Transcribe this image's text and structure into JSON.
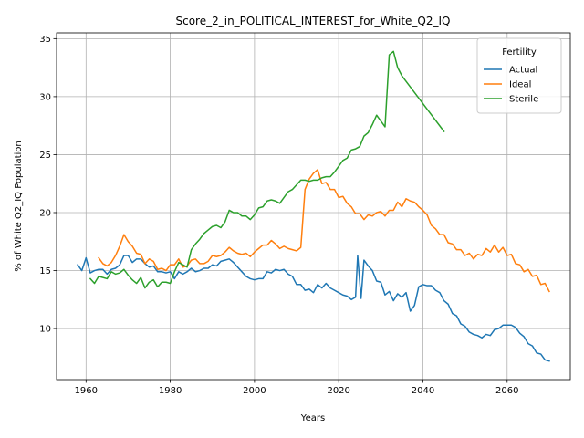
{
  "chart_data": {
    "type": "line",
    "title": "Score_2_in_POLITICAL_INTEREST_for_White_Q2_IQ",
    "xlabel": "Years",
    "ylabel": "% of White Q2_IQ Population",
    "xlim": [
      1953,
      2075
    ],
    "ylim": [
      5.6,
      35.5
    ],
    "xticks": [
      1960,
      1980,
      2000,
      2020,
      2040,
      2060
    ],
    "yticks": [
      10,
      15,
      20,
      25,
      30,
      35
    ],
    "grid": true,
    "legend": {
      "title": "Fertility",
      "position": "top-right"
    },
    "series": [
      {
        "name": "Actual",
        "color": "#1f77b4",
        "points": [
          [
            1958,
            15.5
          ],
          [
            1959,
            15.0
          ],
          [
            1960,
            16.1
          ],
          [
            1961,
            14.8
          ],
          [
            1962,
            15.0
          ],
          [
            1963,
            15.1
          ],
          [
            1964,
            15.1
          ],
          [
            1965,
            14.7
          ],
          [
            1966,
            15.1
          ],
          [
            1967,
            15.2
          ],
          [
            1968,
            15.5
          ],
          [
            1969,
            16.3
          ],
          [
            1970,
            16.3
          ],
          [
            1971,
            15.7
          ],
          [
            1972,
            16.0
          ],
          [
            1973,
            16.0
          ],
          [
            1974,
            15.6
          ],
          [
            1975,
            15.3
          ],
          [
            1976,
            15.4
          ],
          [
            1977,
            14.9
          ],
          [
            1978,
            14.9
          ],
          [
            1979,
            14.8
          ],
          [
            1980,
            14.9
          ],
          [
            1981,
            14.3
          ],
          [
            1982,
            14.9
          ],
          [
            1983,
            14.7
          ],
          [
            1984,
            14.9
          ],
          [
            1985,
            15.2
          ],
          [
            1986,
            14.9
          ],
          [
            1987,
            15.0
          ],
          [
            1988,
            15.2
          ],
          [
            1989,
            15.2
          ],
          [
            1990,
            15.5
          ],
          [
            1991,
            15.4
          ],
          [
            1992,
            15.8
          ],
          [
            1993,
            15.9
          ],
          [
            1994,
            16.0
          ],
          [
            1995,
            15.7
          ],
          [
            1996,
            15.3
          ],
          [
            1997,
            14.9
          ],
          [
            1998,
            14.5
          ],
          [
            1999,
            14.3
          ],
          [
            2000,
            14.2
          ],
          [
            2001,
            14.3
          ],
          [
            2002,
            14.3
          ],
          [
            2003,
            14.9
          ],
          [
            2004,
            14.8
          ],
          [
            2005,
            15.1
          ],
          [
            2006,
            15.0
          ],
          [
            2007,
            15.1
          ],
          [
            2008,
            14.7
          ],
          [
            2009,
            14.5
          ],
          [
            2010,
            13.8
          ],
          [
            2011,
            13.8
          ],
          [
            2012,
            13.3
          ],
          [
            2013,
            13.4
          ],
          [
            2014,
            13.1
          ],
          [
            2015,
            13.8
          ],
          [
            2016,
            13.5
          ],
          [
            2017,
            13.9
          ],
          [
            2018,
            13.5
          ],
          [
            2019,
            13.3
          ],
          [
            2020,
            13.1
          ],
          [
            2021,
            12.9
          ],
          [
            2022,
            12.8
          ],
          [
            2023,
            12.5
          ],
          [
            2024,
            12.7
          ],
          [
            2024.5,
            16.3
          ],
          [
            2025.3,
            12.6
          ],
          [
            2026,
            15.9
          ],
          [
            2027,
            15.4
          ],
          [
            2028,
            15.0
          ],
          [
            2029,
            14.1
          ],
          [
            2030,
            14.0
          ],
          [
            2031,
            12.9
          ],
          [
            2032,
            13.2
          ],
          [
            2033,
            12.4
          ],
          [
            2034,
            13.0
          ],
          [
            2035,
            12.7
          ],
          [
            2036,
            13.1
          ],
          [
            2037,
            11.5
          ],
          [
            2038,
            12.0
          ],
          [
            2039,
            13.6
          ],
          [
            2040,
            13.8
          ],
          [
            2041,
            13.7
          ],
          [
            2042,
            13.7
          ],
          [
            2043,
            13.3
          ],
          [
            2044,
            13.1
          ],
          [
            2045,
            12.4
          ],
          [
            2046,
            12.1
          ],
          [
            2047,
            11.3
          ],
          [
            2048,
            11.1
          ],
          [
            2049,
            10.4
          ],
          [
            2050,
            10.2
          ],
          [
            2051,
            9.7
          ],
          [
            2052,
            9.5
          ],
          [
            2053,
            9.4
          ],
          [
            2054,
            9.2
          ],
          [
            2055,
            9.5
          ],
          [
            2056,
            9.4
          ],
          [
            2057,
            9.9
          ],
          [
            2058,
            10.0
          ],
          [
            2059,
            10.3
          ],
          [
            2060,
            10.3
          ],
          [
            2061,
            10.3
          ],
          [
            2062,
            10.1
          ],
          [
            2063,
            9.6
          ],
          [
            2064,
            9.3
          ],
          [
            2065,
            8.7
          ],
          [
            2066,
            8.5
          ],
          [
            2067,
            7.9
          ],
          [
            2068,
            7.8
          ],
          [
            2069,
            7.3
          ],
          [
            2070,
            7.2
          ]
        ]
      },
      {
        "name": "Ideal",
        "color": "#ff7f0e",
        "points": [
          [
            1963,
            16.1
          ],
          [
            1964,
            15.6
          ],
          [
            1965,
            15.4
          ],
          [
            1966,
            15.7
          ],
          [
            1967,
            16.3
          ],
          [
            1968,
            17.1
          ],
          [
            1969,
            18.1
          ],
          [
            1970,
            17.5
          ],
          [
            1971,
            17.1
          ],
          [
            1972,
            16.5
          ],
          [
            1973,
            16.4
          ],
          [
            1974,
            15.6
          ],
          [
            1975,
            16.0
          ],
          [
            1976,
            15.8
          ],
          [
            1977,
            15.1
          ],
          [
            1978,
            15.2
          ],
          [
            1979,
            15.0
          ],
          [
            1980,
            15.5
          ],
          [
            1981,
            15.5
          ],
          [
            1982,
            16.0
          ],
          [
            1983,
            15.3
          ],
          [
            1984,
            15.4
          ],
          [
            1985,
            15.9
          ],
          [
            1986,
            16.0
          ],
          [
            1987,
            15.6
          ],
          [
            1988,
            15.6
          ],
          [
            1989,
            15.8
          ],
          [
            1990,
            16.3
          ],
          [
            1991,
            16.2
          ],
          [
            1992,
            16.3
          ],
          [
            1993,
            16.6
          ],
          [
            1994,
            17.0
          ],
          [
            1995,
            16.7
          ],
          [
            1996,
            16.5
          ],
          [
            1997,
            16.4
          ],
          [
            1998,
            16.5
          ],
          [
            1999,
            16.2
          ],
          [
            2000,
            16.6
          ],
          [
            2001,
            16.9
          ],
          [
            2002,
            17.2
          ],
          [
            2003,
            17.2
          ],
          [
            2004,
            17.6
          ],
          [
            2005,
            17.3
          ],
          [
            2006,
            16.9
          ],
          [
            2007,
            17.1
          ],
          [
            2008,
            16.9
          ],
          [
            2009,
            16.8
          ],
          [
            2010,
            16.7
          ],
          [
            2011,
            17.0
          ],
          [
            2012,
            22.0
          ],
          [
            2013,
            22.9
          ],
          [
            2014,
            23.4
          ],
          [
            2015,
            23.7
          ],
          [
            2016,
            22.5
          ],
          [
            2017,
            22.6
          ],
          [
            2018,
            22.0
          ],
          [
            2019,
            22.0
          ],
          [
            2020,
            21.3
          ],
          [
            2021,
            21.4
          ],
          [
            2022,
            20.8
          ],
          [
            2023,
            20.5
          ],
          [
            2024,
            19.9
          ],
          [
            2025,
            19.9
          ],
          [
            2026,
            19.4
          ],
          [
            2027,
            19.8
          ],
          [
            2028,
            19.7
          ],
          [
            2029,
            20.0
          ],
          [
            2030,
            20.1
          ],
          [
            2031,
            19.7
          ],
          [
            2032,
            20.2
          ],
          [
            2033,
            20.2
          ],
          [
            2034,
            20.9
          ],
          [
            2035,
            20.5
          ],
          [
            2036,
            21.2
          ],
          [
            2037,
            21.0
          ],
          [
            2038,
            20.9
          ],
          [
            2039,
            20.5
          ],
          [
            2040,
            20.2
          ],
          [
            2041,
            19.8
          ],
          [
            2042,
            18.9
          ],
          [
            2043,
            18.6
          ],
          [
            2044,
            18.1
          ],
          [
            2045,
            18.1
          ],
          [
            2046,
            17.4
          ],
          [
            2047,
            17.3
          ],
          [
            2048,
            16.8
          ],
          [
            2049,
            16.8
          ],
          [
            2050,
            16.3
          ],
          [
            2051,
            16.5
          ],
          [
            2052,
            16.0
          ],
          [
            2053,
            16.4
          ],
          [
            2054,
            16.3
          ],
          [
            2055,
            16.9
          ],
          [
            2056,
            16.6
          ],
          [
            2057,
            17.2
          ],
          [
            2058,
            16.6
          ],
          [
            2059,
            17.0
          ],
          [
            2060,
            16.3
          ],
          [
            2061,
            16.4
          ],
          [
            2062,
            15.6
          ],
          [
            2063,
            15.5
          ],
          [
            2064,
            14.9
          ],
          [
            2065,
            15.1
          ],
          [
            2066,
            14.5
          ],
          [
            2067,
            14.6
          ],
          [
            2068,
            13.8
          ],
          [
            2069,
            13.9
          ],
          [
            2070,
            13.2
          ]
        ]
      },
      {
        "name": "Sterile",
        "color": "#2ca02c",
        "points": [
          [
            1961,
            14.3
          ],
          [
            1962,
            13.9
          ],
          [
            1963,
            14.5
          ],
          [
            1964,
            14.4
          ],
          [
            1965,
            14.3
          ],
          [
            1966,
            14.9
          ],
          [
            1967,
            14.7
          ],
          [
            1968,
            14.8
          ],
          [
            1969,
            15.1
          ],
          [
            1970,
            14.6
          ],
          [
            1971,
            14.2
          ],
          [
            1972,
            13.9
          ],
          [
            1973,
            14.4
          ],
          [
            1974,
            13.5
          ],
          [
            1975,
            14.0
          ],
          [
            1976,
            14.2
          ],
          [
            1977,
            13.6
          ],
          [
            1978,
            14.0
          ],
          [
            1979,
            14.0
          ],
          [
            1980,
            13.9
          ],
          [
            1981,
            14.9
          ],
          [
            1982,
            15.7
          ],
          [
            1983,
            15.5
          ],
          [
            1984,
            15.3
          ],
          [
            1985,
            16.8
          ],
          [
            1986,
            17.3
          ],
          [
            1987,
            17.7
          ],
          [
            1988,
            18.2
          ],
          [
            1989,
            18.5
          ],
          [
            1990,
            18.8
          ],
          [
            1991,
            18.9
          ],
          [
            1992,
            18.7
          ],
          [
            1993,
            19.2
          ],
          [
            1994,
            20.2
          ],
          [
            1995,
            20.0
          ],
          [
            1996,
            20.0
          ],
          [
            1997,
            19.7
          ],
          [
            1998,
            19.7
          ],
          [
            1999,
            19.4
          ],
          [
            2000,
            19.8
          ],
          [
            2001,
            20.4
          ],
          [
            2002,
            20.5
          ],
          [
            2003,
            21.0
          ],
          [
            2004,
            21.1
          ],
          [
            2005,
            21.0
          ],
          [
            2006,
            20.8
          ],
          [
            2007,
            21.3
          ],
          [
            2008,
            21.8
          ],
          [
            2009,
            22.0
          ],
          [
            2010,
            22.4
          ],
          [
            2011,
            22.8
          ],
          [
            2012,
            22.8
          ],
          [
            2013,
            22.7
          ],
          [
            2014,
            22.8
          ],
          [
            2015,
            22.8
          ],
          [
            2016,
            23.0
          ],
          [
            2017,
            23.1
          ],
          [
            2018,
            23.1
          ],
          [
            2019,
            23.5
          ],
          [
            2020,
            24.0
          ],
          [
            2021,
            24.5
          ],
          [
            2022,
            24.7
          ],
          [
            2023,
            25.4
          ],
          [
            2024,
            25.5
          ],
          [
            2025,
            25.7
          ],
          [
            2026,
            26.6
          ],
          [
            2027,
            26.9
          ],
          [
            2028,
            27.6
          ],
          [
            2029,
            28.4
          ],
          [
            2030,
            27.9
          ],
          [
            2031,
            27.4
          ],
          [
            2032,
            33.6
          ],
          [
            2033,
            33.9
          ],
          [
            2034,
            32.5
          ],
          [
            2035,
            31.8
          ],
          [
            2045,
            27.0
          ]
        ]
      }
    ]
  }
}
